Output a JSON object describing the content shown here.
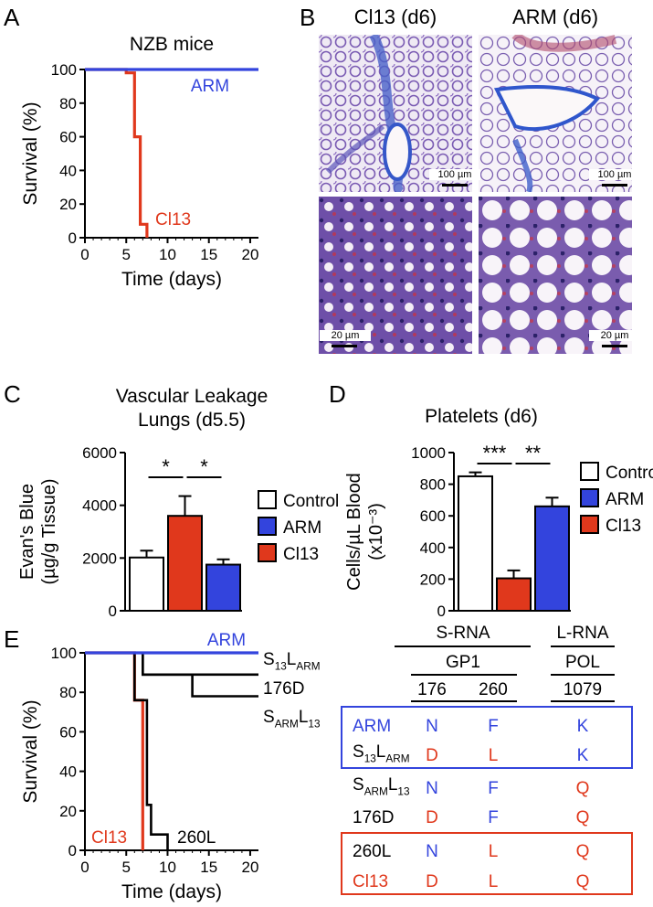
{
  "panels": {
    "A": {
      "label": "A"
    },
    "B": {
      "label": "B"
    },
    "C": {
      "label": "C"
    },
    "D": {
      "label": "D"
    },
    "E": {
      "label": "E"
    }
  },
  "chart_data": [
    {
      "panel": "A",
      "type": "line",
      "title": "NZB mice",
      "xlabel": "Time (days)",
      "ylabel": "Survival (%)",
      "xlim": [
        0,
        21
      ],
      "ylim": [
        0,
        100
      ],
      "xticks": [
        "0",
        "5",
        "10",
        "15",
        "20"
      ],
      "yticks": [
        "0",
        "20",
        "40",
        "60",
        "80",
        "100"
      ],
      "series": [
        {
          "name": "ARM",
          "color": "#3344dd",
          "step": true,
          "points": [
            [
              0,
              100
            ],
            [
              21,
              100
            ]
          ]
        },
        {
          "name": "Cl13",
          "color": "#e0381c",
          "step": true,
          "points": [
            [
              0,
              100
            ],
            [
              5,
              100
            ],
            [
              5,
              98
            ],
            [
              6,
              98
            ],
            [
              6,
              60
            ],
            [
              6.7,
              60
            ],
            [
              6.7,
              8
            ],
            [
              7.5,
              8
            ],
            [
              7.5,
              0
            ]
          ]
        }
      ]
    },
    {
      "panel": "C",
      "type": "bar",
      "title": "Vascular Leakage",
      "subtitle": "Lungs (d5.5)",
      "ylabel_lines": [
        "Evan's Blue",
        "(µg/g Tissue)"
      ],
      "ylim": [
        0,
        6000
      ],
      "yticks": [
        "0",
        "2000",
        "4000",
        "6000"
      ],
      "categories": [
        "Control",
        "Cl13",
        "ARM"
      ],
      "values": [
        2020,
        3600,
        1750
      ],
      "errors": [
        260,
        750,
        200
      ],
      "colors": [
        "#ffffff",
        "#e0381c",
        "#3344dd"
      ],
      "significance": [
        "*",
        "*"
      ],
      "legend": [
        {
          "label": "Control",
          "color": "#ffffff"
        },
        {
          "label": "ARM",
          "color": "#3344dd"
        },
        {
          "label": "Cl13",
          "color": "#e0381c"
        }
      ]
    },
    {
      "panel": "D",
      "type": "bar",
      "title": "Platelets (d6)",
      "ylabel_lines": [
        "Cells/µL Blood",
        "(x10⁻³)"
      ],
      "ylim": [
        0,
        1000
      ],
      "yticks": [
        "0",
        "200",
        "400",
        "600",
        "800",
        "1000"
      ],
      "categories": [
        "Control",
        "Cl13",
        "ARM"
      ],
      "values": [
        850,
        205,
        660
      ],
      "errors": [
        25,
        50,
        55
      ],
      "colors": [
        "#ffffff",
        "#e0381c",
        "#3344dd"
      ],
      "significance": [
        "***",
        "**"
      ],
      "legend": [
        {
          "label": "Control",
          "color": "#ffffff"
        },
        {
          "label": "ARM",
          "color": "#3344dd"
        },
        {
          "label": "Cl13",
          "color": "#e0381c"
        }
      ]
    },
    {
      "panel": "E",
      "type": "line",
      "xlabel": "Time (days)",
      "ylabel": "Survival (%)",
      "xlim": [
        0,
        21
      ],
      "ylim": [
        0,
        100
      ],
      "xticks": [
        "0",
        "5",
        "10",
        "15",
        "20"
      ],
      "yticks": [
        "0",
        "20",
        "40",
        "60",
        "80",
        "100"
      ],
      "series": [
        {
          "name": "ARM",
          "color": "#3344dd",
          "points": [
            [
              0,
              100
            ],
            [
              21,
              100
            ]
          ]
        },
        {
          "name": "S13LARM",
          "color": "#000000",
          "points": [
            [
              0,
              100
            ],
            [
              21,
              100
            ]
          ]
        },
        {
          "name": "176D",
          "color": "#000000",
          "points": [
            [
              0,
              100
            ],
            [
              7,
              100
            ],
            [
              7,
              89
            ],
            [
              21,
              89
            ]
          ]
        },
        {
          "name": "SARML13",
          "color": "#000000",
          "points": [
            [
              0,
              100
            ],
            [
              7,
              100
            ],
            [
              7,
              89
            ],
            [
              13,
              89
            ],
            [
              13,
              78
            ],
            [
              21,
              78
            ]
          ]
        },
        {
          "name": "260L",
          "color": "#000000",
          "points": [
            [
              0,
              100
            ],
            [
              6,
              100
            ],
            [
              6,
              76
            ],
            [
              7.5,
              76
            ],
            [
              7.5,
              23
            ],
            [
              8,
              23
            ],
            [
              8,
              8
            ],
            [
              10,
              8
            ],
            [
              10,
              0
            ]
          ]
        },
        {
          "name": "Cl13",
          "color": "#e0381c",
          "points": [
            [
              0,
              100
            ],
            [
              6,
              100
            ],
            [
              6,
              76
            ],
            [
              7,
              76
            ],
            [
              7,
              0
            ]
          ]
        }
      ]
    }
  ],
  "panelB": {
    "col1_title": "Cl13 (d6)",
    "col2_title": "ARM (d6)",
    "scale_top": "100 µm",
    "scale_bottom": "20 µm"
  },
  "panelE_labels": {
    "ARM": "ARM",
    "Cl13": "Cl13",
    "s13": {
      "main": "S",
      "sub1": "13",
      "mid": "L",
      "sub2": "ARM"
    },
    "176D": "176D",
    "sarm": {
      "main": "S",
      "sub1": "ARM",
      "mid": "L",
      "sub2": "13"
    },
    "260L": "260L"
  },
  "table": {
    "group1": "S-RNA",
    "group2": "L-RNA",
    "sub1": "GP1",
    "sub2": "POL",
    "positions": [
      "176",
      "260",
      "1079"
    ],
    "rows": [
      {
        "name": "ARM",
        "name_color": "#3344dd",
        "values": [
          "N",
          "F",
          "K"
        ],
        "colors": [
          "#3344dd",
          "#3344dd",
          "#3344dd"
        ]
      },
      {
        "name_parts": {
          "main": "S",
          "sub1": "13",
          "mid": "L",
          "sub2": "ARM"
        },
        "name_color": "#000000",
        "values": [
          "D",
          "L",
          "K"
        ],
        "colors": [
          "#e0381c",
          "#e0381c",
          "#3344dd"
        ]
      },
      {
        "name_parts": {
          "main": "S",
          "sub1": "ARM",
          "mid": "L",
          "sub2": "13"
        },
        "name_color": "#000000",
        "values": [
          "N",
          "F",
          "Q"
        ],
        "colors": [
          "#3344dd",
          "#3344dd",
          "#e0381c"
        ]
      },
      {
        "name": "176D",
        "name_color": "#000000",
        "values": [
          "D",
          "F",
          "Q"
        ],
        "colors": [
          "#e0381c",
          "#3344dd",
          "#e0381c"
        ]
      },
      {
        "name": "260L",
        "name_color": "#000000",
        "values": [
          "N",
          "L",
          "Q"
        ],
        "colors": [
          "#3344dd",
          "#e0381c",
          "#e0381c"
        ]
      },
      {
        "name": "Cl13",
        "name_color": "#e0381c",
        "values": [
          "D",
          "L",
          "Q"
        ],
        "colors": [
          "#e0381c",
          "#e0381c",
          "#e0381c"
        ]
      }
    ]
  }
}
